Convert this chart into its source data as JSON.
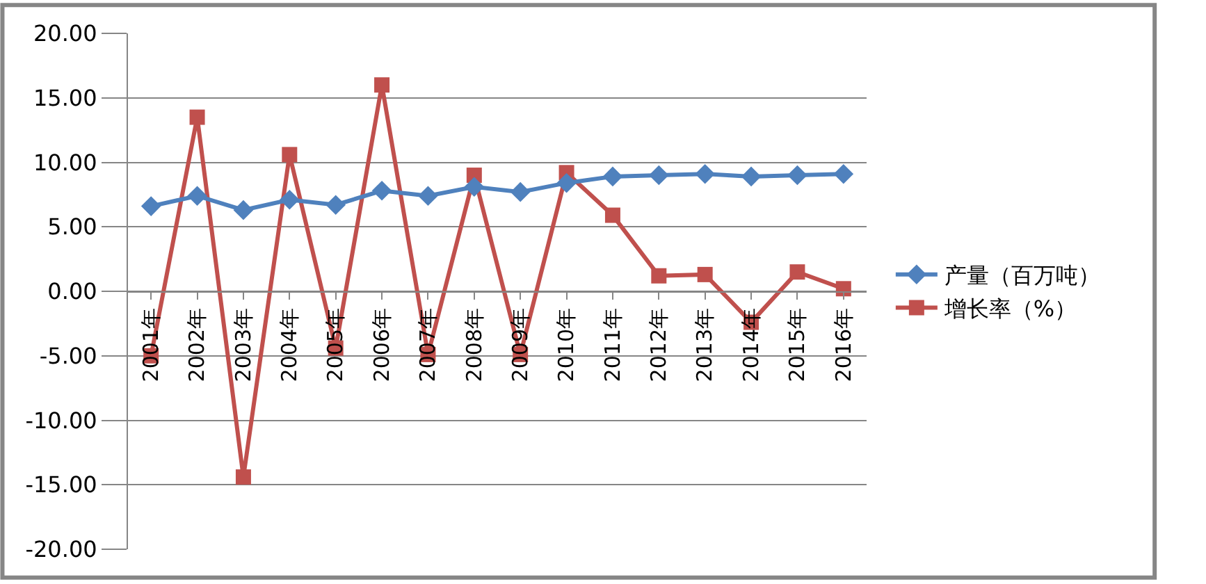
{
  "chart_data": {
    "type": "line",
    "categories": [
      "2001年",
      "2002年",
      "2003年",
      "2004年",
      "2005年",
      "2006年",
      "2007年",
      "2008年",
      "2009年",
      "2010年",
      "2011年",
      "2012年",
      "2013年",
      "2014年",
      "2015年",
      "2016年"
    ],
    "series": [
      {
        "name": "产量（百万吨）",
        "color": "#4f81bd",
        "marker": "diamond",
        "values": [
          6.6,
          7.4,
          6.3,
          7.1,
          6.7,
          7.8,
          7.4,
          8.1,
          7.7,
          8.4,
          8.9,
          9.0,
          9.1,
          8.9,
          9.0,
          9.1
        ]
      },
      {
        "name": "增长率（%）",
        "color": "#c0504d",
        "marker": "square",
        "values": [
          -5.0,
          13.5,
          -14.4,
          10.6,
          -4.4,
          16.0,
          -4.9,
          9.0,
          -4.9,
          9.2,
          5.9,
          1.2,
          1.3,
          -2.4,
          1.5,
          0.2
        ]
      }
    ],
    "ylim": [
      -20,
      20
    ],
    "yticks": [
      {
        "value": -20,
        "label": "-20.00"
      },
      {
        "value": -15,
        "label": "-15.00"
      },
      {
        "value": -10,
        "label": "-10.00"
      },
      {
        "value": -5,
        "label": "-5.00"
      },
      {
        "value": 0,
        "label": "0.00"
      },
      {
        "value": 5,
        "label": "5.00"
      },
      {
        "value": 10,
        "label": "10.00"
      },
      {
        "value": 15,
        "label": "15.00"
      },
      {
        "value": 20,
        "label": "20.00"
      }
    ],
    "grid": "y",
    "legend": "right",
    "line_style": "solid"
  }
}
